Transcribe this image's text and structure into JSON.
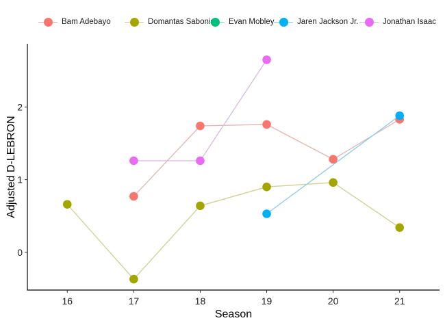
{
  "chart_data": {
    "type": "line",
    "title": "",
    "xlabel": "Season",
    "ylabel": "Adjusted D-LEBRON",
    "x_ticks": [
      "16",
      "17",
      "18",
      "19",
      "20",
      "21"
    ],
    "y_ticks": [
      "0",
      "1",
      "2"
    ],
    "xlim": [
      15.4,
      21.6
    ],
    "ylim": [
      -0.52,
      2.87
    ],
    "grid": false,
    "legend_position": "top",
    "series": [
      {
        "name": "Bam Adebayo",
        "color": "#F8766D",
        "line_color": "#E0B4B4",
        "points": [
          {
            "x": 17,
            "y": 0.77
          },
          {
            "x": 18,
            "y": 1.74
          },
          {
            "x": 19,
            "y": 1.76
          },
          {
            "x": 20,
            "y": 1.28
          },
          {
            "x": 21,
            "y": 1.83
          }
        ]
      },
      {
        "name": "Domantas Sabonis",
        "color": "#A3A500",
        "line_color": "#CFCF94",
        "points": [
          {
            "x": 16,
            "y": 0.66
          },
          {
            "x": 17,
            "y": -0.37
          },
          {
            "x": 18,
            "y": 0.64
          },
          {
            "x": 19,
            "y": 0.9
          },
          {
            "x": 20,
            "y": 0.96
          },
          {
            "x": 21,
            "y": 0.34
          }
        ]
      },
      {
        "name": "Evan Mobley",
        "color": "#00BF7D",
        "line_color": "#8FD9BE",
        "points": []
      },
      {
        "name": "Jaren Jackson Jr.",
        "color": "#00B0F6",
        "line_color": "#8CCBE3",
        "points": [
          {
            "x": 19,
            "y": 0.53
          },
          {
            "x": 21,
            "y": 1.88
          }
        ]
      },
      {
        "name": "Jonathan Isaac",
        "color": "#E76BF3",
        "line_color": "#D8B9DE",
        "points": [
          {
            "x": 17,
            "y": 1.26
          },
          {
            "x": 18,
            "y": 1.26
          },
          {
            "x": 19,
            "y": 2.65
          }
        ]
      }
    ]
  }
}
